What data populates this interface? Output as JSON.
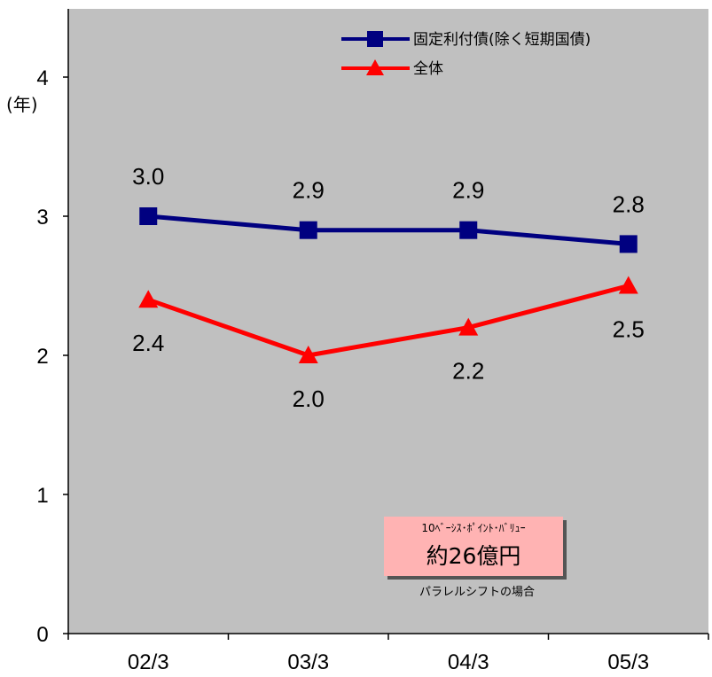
{
  "chart_data": {
    "type": "line",
    "categories": [
      "02/3",
      "03/3",
      "04/3",
      "05/3"
    ],
    "yunit": "(年)",
    "ylim": [
      0,
      4
    ],
    "yticks": [
      "0",
      "1",
      "2",
      "3",
      "4"
    ],
    "grid": false,
    "legend_position": "top-right",
    "background_color": "#c0c0c0",
    "series": [
      {
        "name": "固定利付債(除く短期国債)",
        "values": [
          3.0,
          2.9,
          2.9,
          2.8
        ],
        "labels": [
          "3.0",
          "2.9",
          "2.9",
          "2.8"
        ],
        "color": "#000080",
        "marker": "square",
        "label_position": "above"
      },
      {
        "name": "全体",
        "values": [
          2.4,
          2.0,
          2.2,
          2.5
        ],
        "labels": [
          "2.4",
          "2.0",
          "2.2",
          "2.5"
        ],
        "color": "#ff0000",
        "marker": "triangle",
        "label_position": "below"
      }
    ]
  },
  "annotation": {
    "title": "10ﾍﾞｰｼｽ･ﾎﾟｲﾝﾄ･ﾊﾞﾘｭｰ",
    "value": "約26億円",
    "note": "パラレルシフトの場合",
    "color": "#ffb3b3"
  }
}
